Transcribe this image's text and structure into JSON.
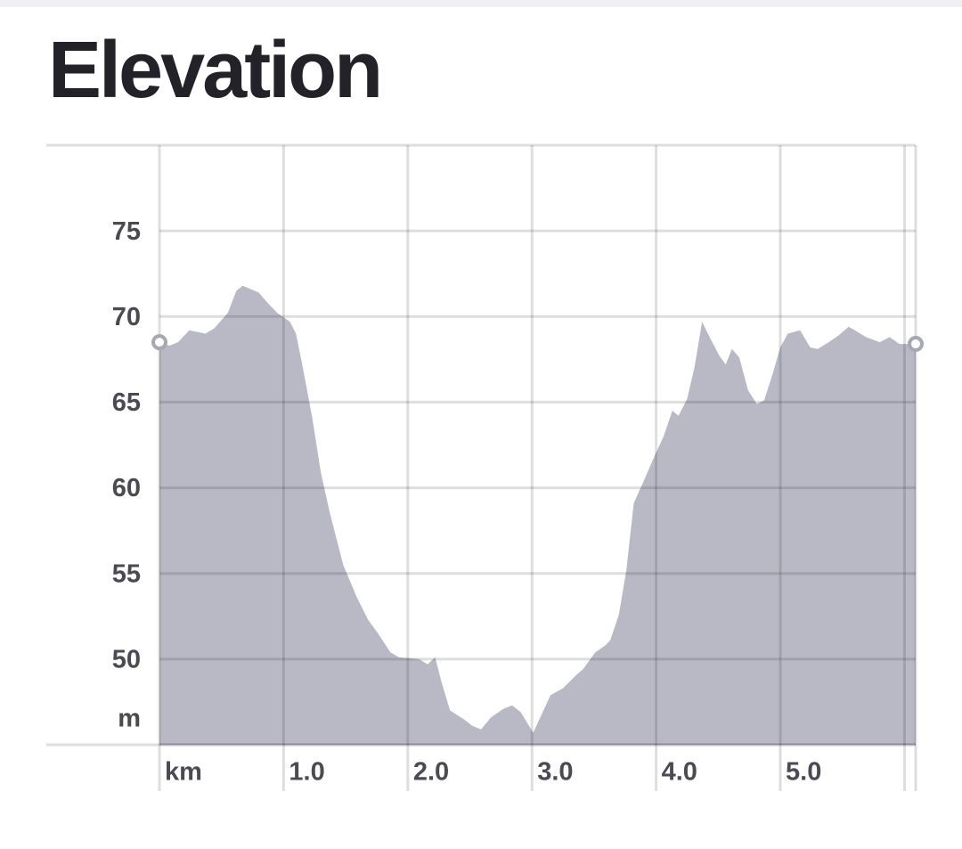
{
  "chart_data": {
    "type": "area",
    "title": "Elevation",
    "x": [
      0,
      0.08,
      0.15,
      0.24,
      0.37,
      0.44,
      0.55,
      0.62,
      0.67,
      0.8,
      0.87,
      0.95,
      1.05,
      1.1,
      1.15,
      1.23,
      1.3,
      1.37,
      1.48,
      1.59,
      1.68,
      1.76,
      1.86,
      1.93,
      2.09,
      2.16,
      2.22,
      2.27,
      2.34,
      2.45,
      2.52,
      2.59,
      2.67,
      2.77,
      2.84,
      2.91,
      3.01,
      3.06,
      3.15,
      3.25,
      3.36,
      3.41,
      3.51,
      3.59,
      3.63,
      3.7,
      3.76,
      3.82,
      3.9,
      3.99,
      4.06,
      4.13,
      4.18,
      4.25,
      4.31,
      4.37,
      4.43,
      4.51,
      4.56,
      4.61,
      4.67,
      4.74,
      4.81,
      4.87,
      4.94,
      5.0,
      5.06,
      5.16,
      5.24,
      5.3,
      5.39,
      5.47,
      5.55,
      5.6,
      5.69,
      5.8,
      5.88,
      5.96,
      6.09
    ],
    "values": [
      68.5,
      68.3,
      68.5,
      69.2,
      69.0,
      69.3,
      70.2,
      71.5,
      71.8,
      71.4,
      70.8,
      70.2,
      69.7,
      69.0,
      67.2,
      64.1,
      60.9,
      58.6,
      55.5,
      53.6,
      52.3,
      51.5,
      50.4,
      50.1,
      50.0,
      49.7,
      50.1,
      48.7,
      47.0,
      46.5,
      46.1,
      45.9,
      46.6,
      47.1,
      47.3,
      46.9,
      45.7,
      46.5,
      47.9,
      48.3,
      49.1,
      49.4,
      50.4,
      50.8,
      51.1,
      52.6,
      55.2,
      59.1,
      60.4,
      61.9,
      63.0,
      64.5,
      64.2,
      65.2,
      67.1,
      69.7,
      68.8,
      67.7,
      67.2,
      68.1,
      67.6,
      65.7,
      64.9,
      65.1,
      66.7,
      68.2,
      69.0,
      69.2,
      68.2,
      68.1,
      68.5,
      68.9,
      69.4,
      69.2,
      68.8,
      68.5,
      68.8,
      68.4,
      68.4
    ],
    "color": "#b9b9c6",
    "xlim": [
      0,
      6.09
    ],
    "xticks": [
      {
        "value": 0,
        "label": "km"
      },
      1,
      2,
      3,
      4,
      5,
      {
        "value": 6,
        "label": null
      }
    ],
    "ylim": [
      45,
      80
    ],
    "yticks": [
      {
        "value": 45,
        "label": "m"
      },
      50,
      55,
      60,
      65,
      70,
      75
    ],
    "grid": true
  }
}
